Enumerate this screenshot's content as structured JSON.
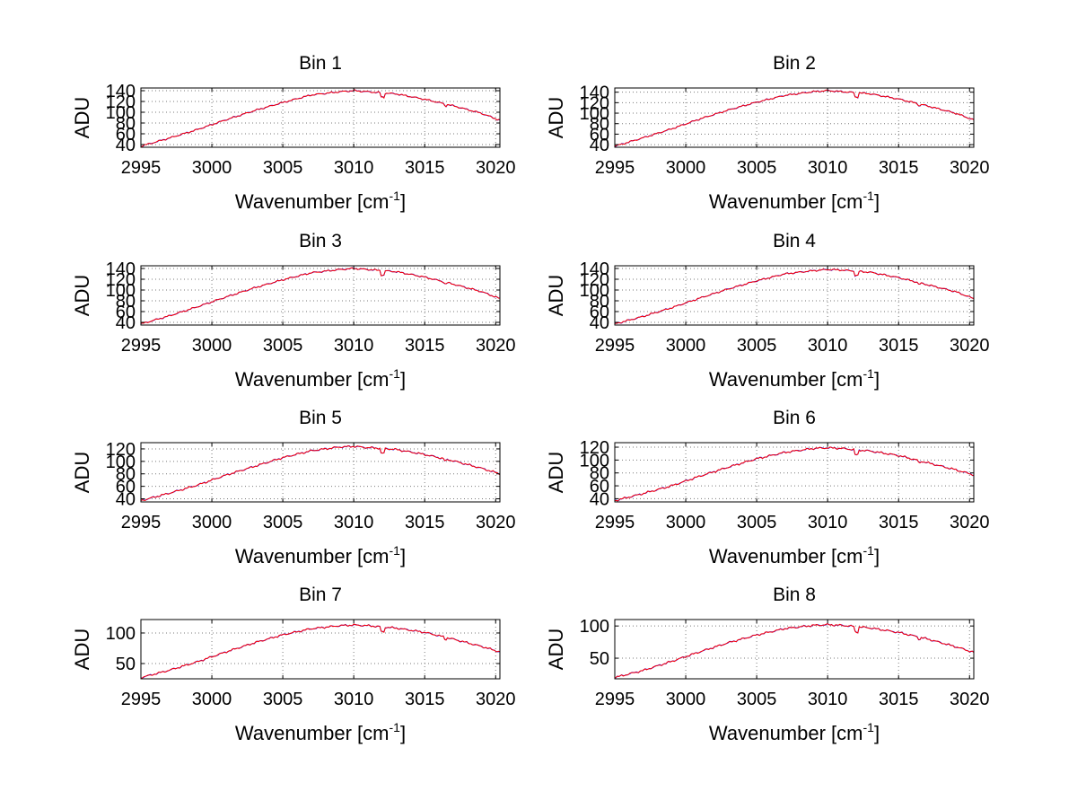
{
  "chart_data": [
    {
      "type": "line",
      "title": "Bin 1",
      "xlabel": "Wavenumber [cm",
      "xlabel_sup": "-1",
      "xlabel_end": "]",
      "ylabel": "ADU",
      "xlim": [
        2995,
        3020.3
      ],
      "ylim": [
        35,
        145
      ],
      "xticks": [
        2995,
        3000,
        3005,
        3010,
        3015,
        3020
      ],
      "yticks": [
        40,
        60,
        80,
        100,
        120,
        140
      ],
      "grid": true,
      "series": [
        {
          "color": "#0000ff",
          "x": [
            2995,
            2997,
            2999,
            3001,
            3003,
            3005,
            3007,
            3009,
            3010,
            3011,
            3012,
            3013,
            3015,
            3017,
            3019,
            3020.3
          ],
          "y": [
            37,
            52,
            68,
            86,
            103,
            118,
            132,
            138,
            140,
            138,
            136,
            134,
            124,
            112,
            98,
            85
          ]
        },
        {
          "color": "#ff0000",
          "x": [
            2995,
            2997,
            2999,
            3001,
            3003,
            3005,
            3007,
            3009,
            3010,
            3011,
            3012,
            3013,
            3015,
            3017,
            3019,
            3020.3
          ],
          "y": [
            37,
            52,
            68,
            86,
            103,
            118,
            132,
            138,
            140,
            138,
            136,
            134,
            124,
            112,
            98,
            85
          ]
        }
      ]
    },
    {
      "type": "line",
      "title": "Bin 2",
      "xlabel": "Wavenumber [cm",
      "xlabel_sup": "-1",
      "xlabel_end": "]",
      "ylabel": "ADU",
      "xlim": [
        2995,
        3020.3
      ],
      "ylim": [
        35,
        148
      ],
      "xticks": [
        2995,
        3000,
        3005,
        3010,
        3015,
        3020
      ],
      "yticks": [
        40,
        60,
        80,
        100,
        120,
        140
      ],
      "grid": true,
      "series": [
        {
          "color": "#0000ff",
          "x": [
            2995,
            2997,
            2999,
            3001,
            3003,
            3005,
            3007,
            3009,
            3010,
            3011,
            3012,
            3013,
            3015,
            3017,
            3019,
            3020.3
          ],
          "y": [
            37,
            53,
            70,
            89,
            106,
            121,
            134,
            141,
            143,
            141,
            139,
            137,
            127,
            114,
            100,
            87
          ]
        },
        {
          "color": "#ff0000",
          "x": [
            2995,
            2997,
            2999,
            3001,
            3003,
            3005,
            3007,
            3009,
            3010,
            3011,
            3012,
            3013,
            3015,
            3017,
            3019,
            3020.3
          ],
          "y": [
            37,
            53,
            70,
            89,
            106,
            121,
            134,
            141,
            143,
            141,
            139,
            137,
            127,
            114,
            100,
            87
          ]
        }
      ]
    },
    {
      "type": "line",
      "title": "Bin 3",
      "xlabel": "Wavenumber [cm",
      "xlabel_sup": "-1",
      "xlabel_end": "]",
      "ylabel": "ADU",
      "xlim": [
        2995,
        3020.3
      ],
      "ylim": [
        35,
        145
      ],
      "xticks": [
        2995,
        3000,
        3005,
        3010,
        3015,
        3020
      ],
      "yticks": [
        40,
        60,
        80,
        100,
        120,
        140
      ],
      "grid": true,
      "series": [
        {
          "color": "#0000ff",
          "x": [
            2995,
            2997,
            2999,
            3001,
            3003,
            3005,
            3007,
            3009,
            3010,
            3011,
            3012,
            3013,
            3015,
            3017,
            3019,
            3020.3
          ],
          "y": [
            37,
            52,
            69,
            87,
            104,
            119,
            132,
            138,
            140,
            138,
            136,
            134,
            124,
            111,
            97,
            84
          ]
        },
        {
          "color": "#ff0000",
          "x": [
            2995,
            2997,
            2999,
            3001,
            3003,
            3005,
            3007,
            3009,
            3010,
            3011,
            3012,
            3013,
            3015,
            3017,
            3019,
            3020.3
          ],
          "y": [
            37,
            52,
            69,
            87,
            104,
            119,
            132,
            138,
            140,
            138,
            136,
            134,
            124,
            111,
            97,
            84
          ]
        }
      ]
    },
    {
      "type": "line",
      "title": "Bin 4",
      "xlabel": "Wavenumber [cm",
      "xlabel_sup": "-1",
      "xlabel_end": "]",
      "ylabel": "ADU",
      "xlim": [
        2995,
        3020.3
      ],
      "ylim": [
        35,
        145
      ],
      "xticks": [
        2995,
        3000,
        3005,
        3010,
        3015,
        3020
      ],
      "yticks": [
        40,
        60,
        80,
        100,
        120,
        140
      ],
      "grid": true,
      "series": [
        {
          "color": "#0000ff",
          "x": [
            2995,
            2997,
            2999,
            3001,
            3003,
            3005,
            3007,
            3009,
            3010,
            3011,
            3012,
            3013,
            3015,
            3017,
            3019,
            3020.3
          ],
          "y": [
            37,
            51,
            67,
            85,
            102,
            117,
            130,
            136,
            138,
            137,
            135,
            133,
            123,
            110,
            97,
            84
          ]
        },
        {
          "color": "#ff0000",
          "x": [
            2995,
            2997,
            2999,
            3001,
            3003,
            3005,
            3007,
            3009,
            3010,
            3011,
            3012,
            3013,
            3015,
            3017,
            3019,
            3020.3
          ],
          "y": [
            37,
            51,
            67,
            85,
            102,
            117,
            130,
            136,
            138,
            137,
            135,
            133,
            123,
            110,
            97,
            84
          ]
        }
      ]
    },
    {
      "type": "line",
      "title": "Bin 5",
      "xlabel": "Wavenumber [cm",
      "xlabel_sup": "-1",
      "xlabel_end": "]",
      "ylabel": "ADU",
      "xlim": [
        2995,
        3020.3
      ],
      "ylim": [
        35,
        130
      ],
      "xticks": [
        2995,
        3000,
        3005,
        3010,
        3015,
        3020
      ],
      "yticks": [
        40,
        60,
        80,
        100,
        120
      ],
      "grid": true,
      "series": [
        {
          "color": "#0000ff",
          "x": [
            2995,
            2997,
            2999,
            3001,
            3003,
            3005,
            3007,
            3009,
            3010,
            3011,
            3012,
            3013,
            3015,
            3017,
            3019,
            3020.3
          ],
          "y": [
            37,
            49,
            62,
            78,
            92,
            106,
            117,
            123,
            124,
            122,
            121,
            119,
            111,
            101,
            89,
            80
          ]
        },
        {
          "color": "#ff0000",
          "x": [
            2995,
            2997,
            2999,
            3001,
            3003,
            3005,
            3007,
            3009,
            3010,
            3011,
            3012,
            3013,
            3015,
            3017,
            3019,
            3020.3
          ],
          "y": [
            37,
            49,
            62,
            78,
            92,
            106,
            117,
            123,
            124,
            122,
            121,
            119,
            111,
            101,
            89,
            80
          ]
        }
      ]
    },
    {
      "type": "line",
      "title": "Bin 6",
      "xlabel": "Wavenumber [cm",
      "xlabel_sup": "-1",
      "xlabel_end": "]",
      "ylabel": "ADU",
      "xlim": [
        2995,
        3020.3
      ],
      "ylim": [
        35,
        127
      ],
      "xticks": [
        2995,
        3000,
        3005,
        3010,
        3015,
        3020
      ],
      "yticks": [
        40,
        60,
        80,
        100,
        120
      ],
      "grid": true,
      "series": [
        {
          "color": "#0000ff",
          "x": [
            2995,
            2997,
            2999,
            3001,
            3003,
            3005,
            3007,
            3009,
            3010,
            3011,
            3012,
            3013,
            3015,
            3017,
            3019,
            3020.3
          ],
          "y": [
            37,
            48,
            60,
            75,
            89,
            102,
            112,
            118,
            119,
            118,
            116,
            114,
            107,
            96,
            85,
            77
          ]
        },
        {
          "color": "#ff0000",
          "x": [
            2995,
            2997,
            2999,
            3001,
            3003,
            3005,
            3007,
            3009,
            3010,
            3011,
            3012,
            3013,
            3015,
            3017,
            3019,
            3020.3
          ],
          "y": [
            37,
            48,
            60,
            75,
            89,
            102,
            112,
            118,
            119,
            118,
            116,
            114,
            107,
            96,
            85,
            77
          ]
        }
      ]
    },
    {
      "type": "line",
      "title": "Bin 7",
      "xlabel": "Wavenumber [cm",
      "xlabel_sup": "-1",
      "xlabel_end": "]",
      "ylabel": "ADU",
      "xlim": [
        2995,
        3020.3
      ],
      "ylim": [
        25,
        122
      ],
      "xticks": [
        2995,
        3000,
        3005,
        3010,
        3015,
        3020
      ],
      "yticks": [
        50,
        100
      ],
      "grid": true,
      "series": [
        {
          "color": "#0000ff",
          "x": [
            2995,
            2997,
            2999,
            3001,
            3003,
            3005,
            3007,
            3009,
            3010,
            3011,
            3012,
            3013,
            3015,
            3017,
            3019,
            3020.3
          ],
          "y": [
            27,
            39,
            53,
            69,
            84,
            97,
            107,
            112,
            113,
            112,
            110,
            108,
            101,
            90,
            78,
            69
          ]
        },
        {
          "color": "#ff0000",
          "x": [
            2995,
            2997,
            2999,
            3001,
            3003,
            3005,
            3007,
            3009,
            3010,
            3011,
            3012,
            3013,
            3015,
            3017,
            3019,
            3020.3
          ],
          "y": [
            27,
            39,
            53,
            69,
            84,
            97,
            107,
            112,
            113,
            112,
            110,
            108,
            101,
            90,
            78,
            69
          ]
        }
      ]
    },
    {
      "type": "line",
      "title": "Bin 8",
      "xlabel": "Wavenumber [cm",
      "xlabel_sup": "-1",
      "xlabel_end": "]",
      "ylabel": "ADU",
      "xlim": [
        2995,
        3020.3
      ],
      "ylim": [
        18,
        110
      ],
      "xticks": [
        2995,
        3000,
        3005,
        3010,
        3015,
        3020
      ],
      "yticks": [
        50,
        100
      ],
      "grid": true,
      "series": [
        {
          "color": "#0000ff",
          "x": [
            2995,
            2997,
            2999,
            3001,
            3003,
            3005,
            3007,
            3009,
            3010,
            3011,
            3012,
            3013,
            3015,
            3017,
            3019,
            3020.3
          ],
          "y": [
            20,
            31,
            45,
            60,
            74,
            86,
            96,
            101,
            102,
            101,
            99,
            97,
            90,
            80,
            68,
            59
          ]
        },
        {
          "color": "#ff0000",
          "x": [
            2995,
            2997,
            2999,
            3001,
            3003,
            3005,
            3007,
            3009,
            3010,
            3011,
            3012,
            3013,
            3015,
            3017,
            3019,
            3020.3
          ],
          "y": [
            20,
            31,
            45,
            60,
            74,
            86,
            96,
            101,
            102,
            101,
            99,
            97,
            90,
            80,
            68,
            59
          ]
        }
      ]
    }
  ]
}
